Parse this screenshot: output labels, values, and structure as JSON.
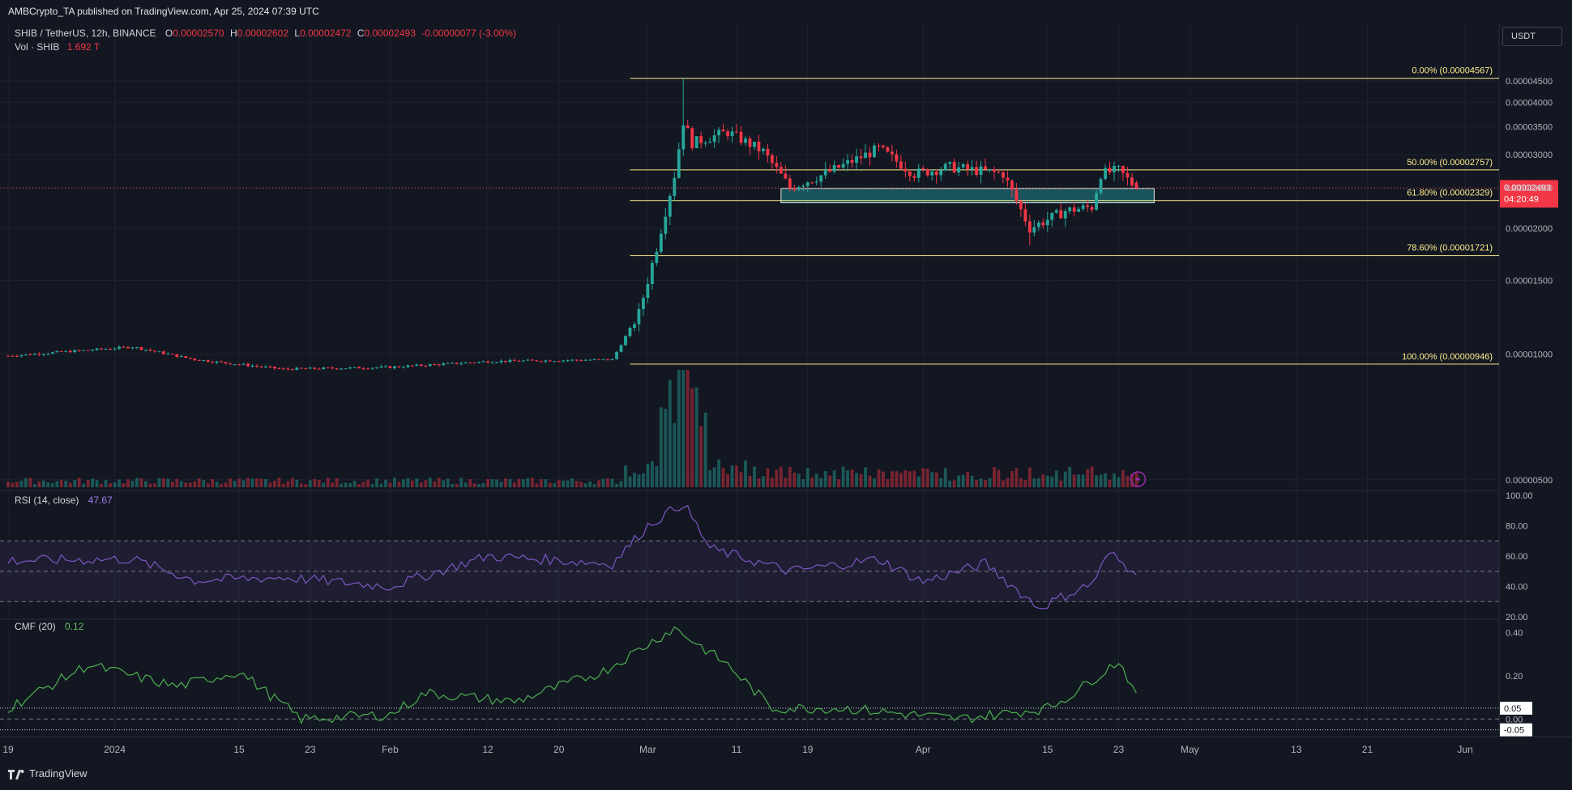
{
  "header": {
    "published": "AMBCrypto_TA published on TradingView.com, Apr 25, 2024 07:39 UTC",
    "symbol": "SHIB / TetherUS, 12h, BINANCE",
    "ohlc": {
      "o_label": "O",
      "o": "0.00002570",
      "h_label": "H",
      "h": "0.00002602",
      "l_label": "L",
      "l": "0.00002472",
      "c_label": "C",
      "c": "0.00002493",
      "change": "-0.00000077 (-3.00%)"
    },
    "vol_label": "Vol · SHIB",
    "vol_value": "1.692 T",
    "currency_button": "USDT"
  },
  "footer": {
    "brand": "TradingView"
  },
  "colors": {
    "background": "#131722",
    "up": "#26a69a",
    "down": "#f23645",
    "fib_line": "#ffee8c",
    "zone_fill": "#1b5f66",
    "rsi": "#7e57c2",
    "cmf": "#4caf50"
  },
  "chart_data": [
    {
      "type": "candlestick",
      "title": "SHIB / TetherUS, 12h, BINANCE",
      "y_scale": "log",
      "ylim": [
        4.8e-06,
        4.92e-05
      ],
      "y_ticks": [
        "0.00004500",
        "0.00004000",
        "0.00003500",
        "0.00003000",
        "0.00002500",
        "0.00002000",
        "0.00001500",
        "0.00001000",
        "0.00000500"
      ],
      "x_ticks": [
        "19",
        "2024",
        "15",
        "23",
        "Feb",
        "12",
        "20",
        "Mar",
        "11",
        "19",
        "Apr",
        "15",
        "23",
        "May",
        "13",
        "21",
        "Jun"
      ],
      "last_price": "0.00002493",
      "countdown": "04:20:49",
      "fib_levels": [
        {
          "label": "0.00% (0.00004567)",
          "value": 4.567e-05
        },
        {
          "label": "50.00% (0.00002757)",
          "value": 2.757e-05
        },
        {
          "label": "61.80% (0.00002329)",
          "value": 2.329e-05
        },
        {
          "label": "78.60% (0.00001721)",
          "value": 1.721e-05
        },
        {
          "label": "100.00% (0.00000946)",
          "value": 9.46e-06
        }
      ],
      "zone": {
        "from": "Mar 16",
        "to": "Apr 27",
        "low": 2.3e-05,
        "high": 2.49e-05
      },
      "price_path": [
        [
          "Dec 19",
          9.9e-06
        ],
        [
          "Jan 3",
          1.04e-05
        ],
        [
          "Jan 10",
          9.7e-06
        ],
        [
          "Jan 20",
          9.2e-06
        ],
        [
          "Feb 1",
          9.3e-06
        ],
        [
          "Feb 12",
          9.6e-06
        ],
        [
          "Feb 26",
          9.7e-06
        ],
        [
          "Feb 29",
          1.25e-05
        ],
        [
          "Mar 2",
          1.8e-05
        ],
        [
          "Mar 4",
          2.68e-05
        ],
        [
          "Mar 5",
          3.6e-05
        ],
        [
          "Mar 6",
          3.2e-05
        ],
        [
          "Mar 10",
          3.4e-05
        ],
        [
          "Mar 14",
          3.05e-05
        ],
        [
          "Mar 17",
          2.5e-05
        ],
        [
          "Mar 21",
          2.7e-05
        ],
        [
          "Mar 27",
          3.1e-05
        ],
        [
          "Mar 31",
          2.7e-05
        ],
        [
          "Apr 4",
          2.8e-05
        ],
        [
          "Apr 10",
          2.7e-05
        ],
        [
          "Apr 13",
          2e-05
        ],
        [
          "Apr 17",
          2.2e-05
        ],
        [
          "Apr 20",
          2.25e-05
        ],
        [
          "Apr 21",
          2.7e-05
        ],
        [
          "Apr 23",
          2.75e-05
        ],
        [
          "Apr 25",
          2.49e-05
        ]
      ],
      "volume_spike": "Mar 5"
    },
    {
      "type": "line",
      "title": "RSI (14, close)",
      "value_label": "47.67",
      "ylim": [
        20,
        100
      ],
      "y_ticks": [
        "100.00",
        "80.00",
        "60.00",
        "40.00",
        "20.00"
      ],
      "band": [
        30,
        70
      ],
      "points": [
        [
          "Dec 19",
          57
        ],
        [
          "Jan 3",
          58
        ],
        [
          "Jan 10",
          44
        ],
        [
          "Jan 20",
          46
        ],
        [
          "Feb 1",
          40
        ],
        [
          "Feb 12",
          60
        ],
        [
          "Feb 26",
          55
        ],
        [
          "Mar 1",
          80
        ],
        [
          "Mar 5",
          95
        ],
        [
          "Mar 8",
          65
        ],
        [
          "Mar 17",
          50
        ],
        [
          "Mar 27",
          58
        ],
        [
          "Apr 1",
          43
        ],
        [
          "Apr 8",
          55
        ],
        [
          "Apr 14",
          26
        ],
        [
          "Apr 20",
          42
        ],
        [
          "Apr 22",
          62
        ],
        [
          "Apr 25",
          47.67
        ]
      ]
    },
    {
      "type": "line",
      "title": "CMF (20)",
      "value_label": "0.12",
      "ylim": [
        -0.07,
        0.45
      ],
      "y_ticks": [
        "0.40",
        "0.20",
        "0.00"
      ],
      "marked_levels": [
        "0.05",
        "-0.05"
      ],
      "points": [
        [
          "Dec 19",
          0.05
        ],
        [
          "Dec 28",
          0.25
        ],
        [
          "Jan 8",
          0.15
        ],
        [
          "Jan 15",
          0.22
        ],
        [
          "Jan 22",
          0.0
        ],
        [
          "Feb 1",
          0.02
        ],
        [
          "Feb 5",
          0.12
        ],
        [
          "Feb 15",
          0.08
        ],
        [
          "Feb 25",
          0.22
        ],
        [
          "Mar 4",
          0.42
        ],
        [
          "Mar 10",
          0.25
        ],
        [
          "Mar 15",
          0.05
        ],
        [
          "Mar 23",
          0.05
        ],
        [
          "Apr 5",
          0.0
        ],
        [
          "Apr 15",
          0.05
        ],
        [
          "Apr 18",
          0.12
        ],
        [
          "Apr 23",
          0.27
        ],
        [
          "Apr 25",
          0.12
        ]
      ]
    }
  ]
}
